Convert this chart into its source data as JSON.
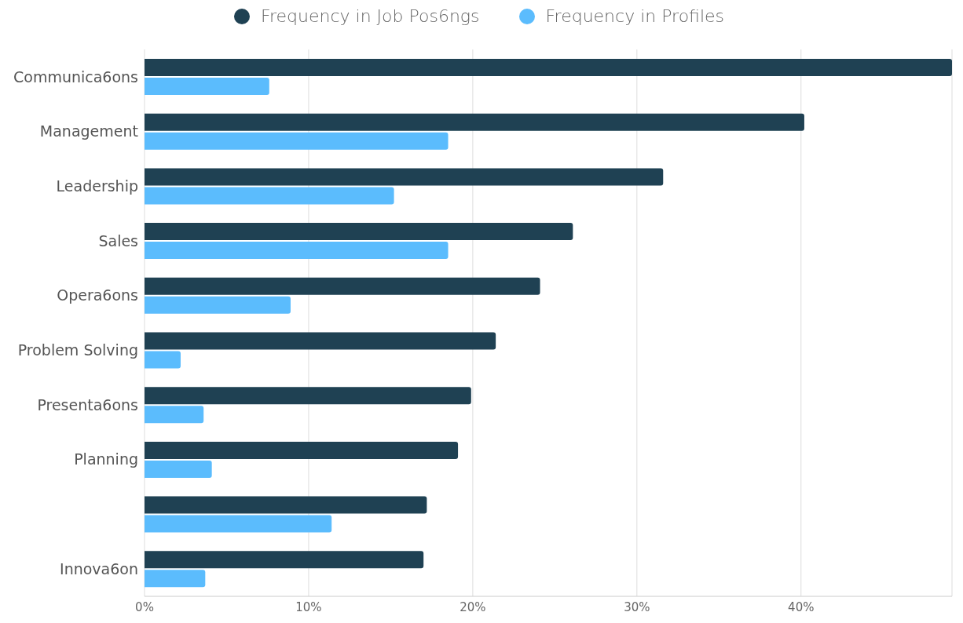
{
  "chart_data": {
    "type": "bar",
    "orientation": "horizontal",
    "categories": [
      "Communica6ons",
      "Management",
      "Leadership",
      "Sales",
      "Opera6ons",
      "Problem Solving",
      "Presenta6ons",
      "Planning",
      null,
      "Innova6on"
    ],
    "series": [
      {
        "name": "Frequency in Job Pos6ngs",
        "color": "#1f4153",
        "values": [
          49.2,
          40.2,
          31.6,
          26.1,
          24.1,
          21.4,
          19.9,
          19.1,
          17.2,
          17.0
        ]
      },
      {
        "name": "Frequency in Profiles",
        "color": "#5bbcfd",
        "values": [
          7.6,
          18.5,
          15.2,
          18.5,
          8.9,
          2.2,
          3.6,
          4.1,
          11.4,
          3.7
        ]
      }
    ],
    "xlim": [
      0,
      49.2
    ],
    "xticks": [
      {
        "value": 0,
        "label": "0%"
      },
      {
        "value": 10,
        "label": "10%"
      },
      {
        "value": 20,
        "label": "20%"
      },
      {
        "value": 30,
        "label": "30%"
      },
      {
        "value": 40,
        "label": "40%"
      }
    ],
    "grid": "x",
    "legend": "top"
  }
}
